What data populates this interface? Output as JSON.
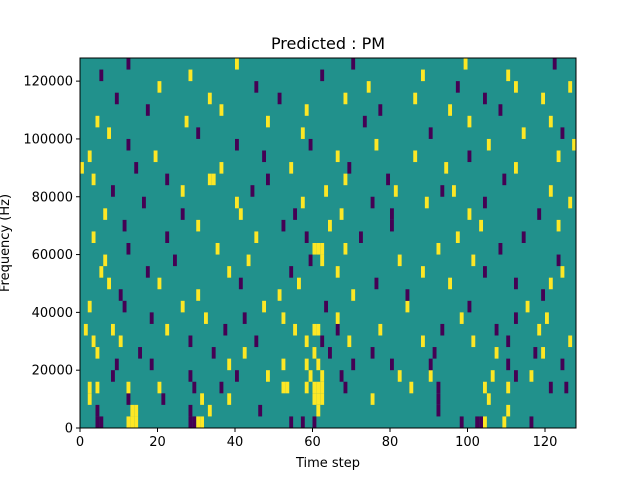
{
  "chart_data": {
    "type": "heatmap",
    "title": "Predicted : PM",
    "xlabel": "Time step",
    "ylabel": "Frequency (Hz)",
    "xlim": [
      0,
      128
    ],
    "ylim": [
      0,
      128000
    ],
    "x_ticks": [
      0,
      20,
      40,
      60,
      80,
      100,
      120
    ],
    "y_ticks": [
      0,
      20000,
      40000,
      60000,
      80000,
      100000,
      120000
    ],
    "y_tick_labels": [
      "0",
      "20000",
      "40000",
      "60000",
      "80000",
      "100000",
      "120000"
    ],
    "grid": false,
    "colormap": "viridis",
    "background_value": 0,
    "colors": {
      "background": "#21918c",
      "low": "#440154",
      "high": "#fde725"
    },
    "cell_height_hz": 4000,
    "cells": [
      {
        "t": 4,
        "f": 0,
        "v": -1
      },
      {
        "t": 5,
        "f": 0,
        "v": -1
      },
      {
        "t": 12,
        "f": 0,
        "v": 1
      },
      {
        "t": 13,
        "f": 0,
        "v": 1
      },
      {
        "t": 14,
        "f": 0,
        "v": 1
      },
      {
        "t": 28,
        "f": 0,
        "v": -1
      },
      {
        "t": 29,
        "f": 0,
        "v": -1
      },
      {
        "t": 30,
        "f": 0,
        "v": 1
      },
      {
        "t": 31,
        "f": 0,
        "v": 1
      },
      {
        "t": 54,
        "f": 0,
        "v": -1
      },
      {
        "t": 57,
        "f": 0,
        "v": -1
      },
      {
        "t": 60,
        "f": 0,
        "v": -1
      },
      {
        "t": 98,
        "f": 0,
        "v": -1
      },
      {
        "t": 102,
        "f": 0,
        "v": -1
      },
      {
        "t": 103,
        "f": 0,
        "v": -1
      },
      {
        "t": 104,
        "f": 0,
        "v": 1
      },
      {
        "t": 109,
        "f": 0,
        "v": 1
      },
      {
        "t": 116,
        "f": 0,
        "v": -1
      },
      {
        "t": 4,
        "f": 4000,
        "v": -1
      },
      {
        "t": 13,
        "f": 4000,
        "v": 1
      },
      {
        "t": 14,
        "f": 4000,
        "v": 1
      },
      {
        "t": 28,
        "f": 4000,
        "v": -1
      },
      {
        "t": 33,
        "f": 4000,
        "v": 1
      },
      {
        "t": 46,
        "f": 4000,
        "v": -1
      },
      {
        "t": 61,
        "f": 4000,
        "v": 1
      },
      {
        "t": 92,
        "f": 4000,
        "v": -1
      },
      {
        "t": 110,
        "f": 4000,
        "v": 1
      },
      {
        "t": 2,
        "f": 8000,
        "v": 1
      },
      {
        "t": 12,
        "f": 8000,
        "v": -1
      },
      {
        "t": 21,
        "f": 8000,
        "v": -1
      },
      {
        "t": 31,
        "f": 8000,
        "v": 1
      },
      {
        "t": 38,
        "f": 8000,
        "v": 1
      },
      {
        "t": 60,
        "f": 8000,
        "v": 1
      },
      {
        "t": 61,
        "f": 8000,
        "v": 1
      },
      {
        "t": 62,
        "f": 8000,
        "v": 1
      },
      {
        "t": 75,
        "f": 8000,
        "v": 1
      },
      {
        "t": 92,
        "f": 8000,
        "v": -1
      },
      {
        "t": 105,
        "f": 8000,
        "v": 1
      },
      {
        "t": 2,
        "f": 12000,
        "v": 1
      },
      {
        "t": 4,
        "f": 12000,
        "v": 1
      },
      {
        "t": 12,
        "f": 12000,
        "v": 1
      },
      {
        "t": 20,
        "f": 12000,
        "v": 1
      },
      {
        "t": 29,
        "f": 12000,
        "v": -1
      },
      {
        "t": 36,
        "f": 12000,
        "v": -1
      },
      {
        "t": 52,
        "f": 12000,
        "v": 1
      },
      {
        "t": 53,
        "f": 12000,
        "v": 1
      },
      {
        "t": 58,
        "f": 12000,
        "v": 1
      },
      {
        "t": 60,
        "f": 12000,
        "v": 1
      },
      {
        "t": 61,
        "f": 12000,
        "v": 1
      },
      {
        "t": 62,
        "f": 12000,
        "v": 1
      },
      {
        "t": 68,
        "f": 12000,
        "v": -1
      },
      {
        "t": 85,
        "f": 12000,
        "v": 1
      },
      {
        "t": 92,
        "f": 12000,
        "v": -1
      },
      {
        "t": 104,
        "f": 12000,
        "v": 1
      },
      {
        "t": 110,
        "f": 12000,
        "v": 1
      },
      {
        "t": 121,
        "f": 12000,
        "v": -1
      },
      {
        "t": 125,
        "f": 12000,
        "v": -1
      },
      {
        "t": 8,
        "f": 16000,
        "v": -1
      },
      {
        "t": 28,
        "f": 16000,
        "v": -1
      },
      {
        "t": 40,
        "f": 16000,
        "v": -1
      },
      {
        "t": 48,
        "f": 16000,
        "v": 1
      },
      {
        "t": 59,
        "f": 16000,
        "v": 1
      },
      {
        "t": 62,
        "f": 16000,
        "v": 1
      },
      {
        "t": 67,
        "f": 16000,
        "v": -1
      },
      {
        "t": 82,
        "f": 16000,
        "v": 1
      },
      {
        "t": 90,
        "f": 16000,
        "v": 1
      },
      {
        "t": 106,
        "f": 16000,
        "v": 1
      },
      {
        "t": 112,
        "f": 16000,
        "v": -1
      },
      {
        "t": 116,
        "f": 16000,
        "v": 1
      },
      {
        "t": 9,
        "f": 20000,
        "v": -1
      },
      {
        "t": 18,
        "f": 20000,
        "v": -1
      },
      {
        "t": 38,
        "f": 20000,
        "v": 1
      },
      {
        "t": 52,
        "f": 20000,
        "v": 1
      },
      {
        "t": 58,
        "f": 20000,
        "v": 1
      },
      {
        "t": 61,
        "f": 20000,
        "v": 1
      },
      {
        "t": 70,
        "f": 20000,
        "v": -1
      },
      {
        "t": 80,
        "f": 20000,
        "v": -1
      },
      {
        "t": 90,
        "f": 20000,
        "v": -1
      },
      {
        "t": 110,
        "f": 20000,
        "v": -1
      },
      {
        "t": 124,
        "f": 20000,
        "v": -1
      },
      {
        "t": 4,
        "f": 24000,
        "v": 1
      },
      {
        "t": 15,
        "f": 24000,
        "v": -1
      },
      {
        "t": 34,
        "f": 24000,
        "v": -1
      },
      {
        "t": 42,
        "f": 24000,
        "v": 1
      },
      {
        "t": 60,
        "f": 24000,
        "v": 1
      },
      {
        "t": 64,
        "f": 24000,
        "v": -1
      },
      {
        "t": 75,
        "f": 24000,
        "v": -1
      },
      {
        "t": 91,
        "f": 24000,
        "v": -1
      },
      {
        "t": 107,
        "f": 24000,
        "v": 1
      },
      {
        "t": 117,
        "f": 24000,
        "v": -1
      },
      {
        "t": 119,
        "f": 24000,
        "v": 1
      },
      {
        "t": 3,
        "f": 28000,
        "v": 1
      },
      {
        "t": 10,
        "f": 28000,
        "v": 1
      },
      {
        "t": 28,
        "f": 28000,
        "v": -1
      },
      {
        "t": 45,
        "f": 28000,
        "v": -1
      },
      {
        "t": 58,
        "f": 28000,
        "v": 1
      },
      {
        "t": 62,
        "f": 28000,
        "v": -1
      },
      {
        "t": 69,
        "f": 28000,
        "v": 1
      },
      {
        "t": 88,
        "f": 28000,
        "v": 1
      },
      {
        "t": 101,
        "f": 28000,
        "v": 1
      },
      {
        "t": 110,
        "f": 28000,
        "v": -1
      },
      {
        "t": 126,
        "f": 28000,
        "v": 1
      },
      {
        "t": 1,
        "f": 32000,
        "v": 1
      },
      {
        "t": 8,
        "f": 32000,
        "v": 1
      },
      {
        "t": 22,
        "f": 32000,
        "v": 1
      },
      {
        "t": 37,
        "f": 32000,
        "v": -1
      },
      {
        "t": 55,
        "f": 32000,
        "v": 1
      },
      {
        "t": 60,
        "f": 32000,
        "v": 1
      },
      {
        "t": 61,
        "f": 32000,
        "v": 1
      },
      {
        "t": 66,
        "f": 32000,
        "v": -1
      },
      {
        "t": 77,
        "f": 32000,
        "v": 1
      },
      {
        "t": 93,
        "f": 32000,
        "v": -1
      },
      {
        "t": 107,
        "f": 32000,
        "v": -1
      },
      {
        "t": 118,
        "f": 32000,
        "v": 1
      },
      {
        "t": 18,
        "f": 36000,
        "v": -1
      },
      {
        "t": 32,
        "f": 36000,
        "v": 1
      },
      {
        "t": 42,
        "f": 36000,
        "v": -1
      },
      {
        "t": 52,
        "f": 36000,
        "v": 1
      },
      {
        "t": 66,
        "f": 36000,
        "v": 1
      },
      {
        "t": 98,
        "f": 36000,
        "v": 1
      },
      {
        "t": 112,
        "f": 36000,
        "v": -1
      },
      {
        "t": 120,
        "f": 36000,
        "v": 1
      },
      {
        "t": 2,
        "f": 40000,
        "v": 1
      },
      {
        "t": 11,
        "f": 40000,
        "v": -1
      },
      {
        "t": 26,
        "f": 40000,
        "v": 1
      },
      {
        "t": 47,
        "f": 40000,
        "v": 1
      },
      {
        "t": 63,
        "f": 40000,
        "v": -1
      },
      {
        "t": 84,
        "f": 40000,
        "v": 1
      },
      {
        "t": 100,
        "f": 40000,
        "v": -1
      },
      {
        "t": 115,
        "f": 40000,
        "v": 1
      },
      {
        "t": 10,
        "f": 44000,
        "v": -1
      },
      {
        "t": 30,
        "f": 44000,
        "v": 1
      },
      {
        "t": 51,
        "f": 44000,
        "v": 1
      },
      {
        "t": 70,
        "f": 44000,
        "v": 1
      },
      {
        "t": 84,
        "f": 44000,
        "v": -1
      },
      {
        "t": 119,
        "f": 44000,
        "v": -1
      },
      {
        "t": 7,
        "f": 48000,
        "v": 1
      },
      {
        "t": 20,
        "f": 48000,
        "v": 1
      },
      {
        "t": 41,
        "f": 48000,
        "v": -1
      },
      {
        "t": 56,
        "f": 48000,
        "v": 1
      },
      {
        "t": 76,
        "f": 48000,
        "v": -1
      },
      {
        "t": 95,
        "f": 48000,
        "v": 1
      },
      {
        "t": 112,
        "f": 48000,
        "v": -1
      },
      {
        "t": 121,
        "f": 48000,
        "v": 1
      },
      {
        "t": 5,
        "f": 52000,
        "v": 1
      },
      {
        "t": 17,
        "f": 52000,
        "v": -1
      },
      {
        "t": 38,
        "f": 52000,
        "v": 1
      },
      {
        "t": 54,
        "f": 52000,
        "v": -1
      },
      {
        "t": 66,
        "f": 52000,
        "v": 1
      },
      {
        "t": 88,
        "f": 52000,
        "v": 1
      },
      {
        "t": 104,
        "f": 52000,
        "v": -1
      },
      {
        "t": 124,
        "f": 52000,
        "v": 1
      },
      {
        "t": 6,
        "f": 56000,
        "v": 1
      },
      {
        "t": 24,
        "f": 56000,
        "v": -1
      },
      {
        "t": 43,
        "f": 56000,
        "v": 1
      },
      {
        "t": 59,
        "f": 56000,
        "v": -1
      },
      {
        "t": 62,
        "f": 56000,
        "v": 1
      },
      {
        "t": 82,
        "f": 56000,
        "v": 1
      },
      {
        "t": 101,
        "f": 56000,
        "v": 1
      },
      {
        "t": 123,
        "f": 56000,
        "v": -1
      },
      {
        "t": 12,
        "f": 60000,
        "v": -1
      },
      {
        "t": 35,
        "f": 60000,
        "v": 1
      },
      {
        "t": 60,
        "f": 60000,
        "v": 1
      },
      {
        "t": 61,
        "f": 60000,
        "v": 1
      },
      {
        "t": 62,
        "f": 60000,
        "v": 1
      },
      {
        "t": 68,
        "f": 60000,
        "v": 1
      },
      {
        "t": 92,
        "f": 60000,
        "v": 1
      },
      {
        "t": 108,
        "f": 60000,
        "v": -1
      },
      {
        "t": 3,
        "f": 64000,
        "v": 1
      },
      {
        "t": 22,
        "f": 64000,
        "v": -1
      },
      {
        "t": 45,
        "f": 64000,
        "v": 1
      },
      {
        "t": 58,
        "f": 64000,
        "v": -1
      },
      {
        "t": 72,
        "f": 64000,
        "v": -1
      },
      {
        "t": 97,
        "f": 64000,
        "v": 1
      },
      {
        "t": 114,
        "f": 64000,
        "v": -1
      },
      {
        "t": 11,
        "f": 68000,
        "v": -1
      },
      {
        "t": 30,
        "f": 68000,
        "v": 1
      },
      {
        "t": 52,
        "f": 68000,
        "v": -1
      },
      {
        "t": 64,
        "f": 68000,
        "v": 1
      },
      {
        "t": 80,
        "f": 68000,
        "v": -1
      },
      {
        "t": 103,
        "f": 68000,
        "v": 1
      },
      {
        "t": 123,
        "f": 68000,
        "v": 1
      },
      {
        "t": 6,
        "f": 72000,
        "v": 1
      },
      {
        "t": 26,
        "f": 72000,
        "v": -1
      },
      {
        "t": 41,
        "f": 72000,
        "v": 1
      },
      {
        "t": 55,
        "f": 72000,
        "v": -1
      },
      {
        "t": 67,
        "f": 72000,
        "v": 1
      },
      {
        "t": 80,
        "f": 72000,
        "v": -1
      },
      {
        "t": 100,
        "f": 72000,
        "v": 1
      },
      {
        "t": 118,
        "f": 72000,
        "v": -1
      },
      {
        "t": 16,
        "f": 76000,
        "v": -1
      },
      {
        "t": 40,
        "f": 76000,
        "v": 1
      },
      {
        "t": 57,
        "f": 76000,
        "v": 1
      },
      {
        "t": 75,
        "f": 76000,
        "v": -1
      },
      {
        "t": 89,
        "f": 76000,
        "v": 1
      },
      {
        "t": 104,
        "f": 76000,
        "v": -1
      },
      {
        "t": 126,
        "f": 76000,
        "v": 1
      },
      {
        "t": 8,
        "f": 80000,
        "v": -1
      },
      {
        "t": 26,
        "f": 80000,
        "v": 1
      },
      {
        "t": 44,
        "f": 80000,
        "v": -1
      },
      {
        "t": 63,
        "f": 80000,
        "v": 1
      },
      {
        "t": 81,
        "f": 80000,
        "v": 1
      },
      {
        "t": 93,
        "f": 80000,
        "v": -1
      },
      {
        "t": 96,
        "f": 80000,
        "v": 1
      },
      {
        "t": 121,
        "f": 80000,
        "v": 1
      },
      {
        "t": 3,
        "f": 84000,
        "v": 1
      },
      {
        "t": 22,
        "f": 84000,
        "v": -1
      },
      {
        "t": 33,
        "f": 84000,
        "v": 1
      },
      {
        "t": 34,
        "f": 84000,
        "v": 1
      },
      {
        "t": 48,
        "f": 84000,
        "v": -1
      },
      {
        "t": 68,
        "f": 84000,
        "v": 1
      },
      {
        "t": 79,
        "f": 84000,
        "v": -1
      },
      {
        "t": 109,
        "f": 84000,
        "v": -1
      },
      {
        "t": 0,
        "f": 88000,
        "v": 1
      },
      {
        "t": 14,
        "f": 88000,
        "v": -1
      },
      {
        "t": 36,
        "f": 88000,
        "v": 1
      },
      {
        "t": 54,
        "f": 88000,
        "v": 1
      },
      {
        "t": 69,
        "f": 88000,
        "v": -1
      },
      {
        "t": 94,
        "f": 88000,
        "v": 1
      },
      {
        "t": 112,
        "f": 88000,
        "v": 1
      },
      {
        "t": 2,
        "f": 92000,
        "v": 1
      },
      {
        "t": 19,
        "f": 92000,
        "v": 1
      },
      {
        "t": 47,
        "f": 92000,
        "v": -1
      },
      {
        "t": 66,
        "f": 92000,
        "v": 1
      },
      {
        "t": 86,
        "f": 92000,
        "v": 1
      },
      {
        "t": 100,
        "f": 92000,
        "v": -1
      },
      {
        "t": 123,
        "f": 92000,
        "v": 1
      },
      {
        "t": 12,
        "f": 96000,
        "v": -1
      },
      {
        "t": 40,
        "f": 96000,
        "v": -1
      },
      {
        "t": 59,
        "f": 96000,
        "v": -1
      },
      {
        "t": 76,
        "f": 96000,
        "v": 1
      },
      {
        "t": 105,
        "f": 96000,
        "v": 1
      },
      {
        "t": 127,
        "f": 96000,
        "v": 1
      },
      {
        "t": 7,
        "f": 100000,
        "v": 1
      },
      {
        "t": 30,
        "f": 100000,
        "v": -1
      },
      {
        "t": 57,
        "f": 100000,
        "v": 1
      },
      {
        "t": 90,
        "f": 100000,
        "v": -1
      },
      {
        "t": 114,
        "f": 100000,
        "v": 1
      },
      {
        "t": 124,
        "f": 100000,
        "v": -1
      },
      {
        "t": 4,
        "f": 104000,
        "v": 1
      },
      {
        "t": 27,
        "f": 104000,
        "v": 1
      },
      {
        "t": 48,
        "f": 104000,
        "v": 1
      },
      {
        "t": 73,
        "f": 104000,
        "v": -1
      },
      {
        "t": 100,
        "f": 104000,
        "v": 1
      },
      {
        "t": 121,
        "f": 104000,
        "v": 1
      },
      {
        "t": 17,
        "f": 108000,
        "v": -1
      },
      {
        "t": 36,
        "f": 108000,
        "v": 1
      },
      {
        "t": 58,
        "f": 108000,
        "v": 1
      },
      {
        "t": 77,
        "f": 108000,
        "v": -1
      },
      {
        "t": 95,
        "f": 108000,
        "v": 1
      },
      {
        "t": 108,
        "f": 108000,
        "v": -1
      },
      {
        "t": 9,
        "f": 112000,
        "v": -1
      },
      {
        "t": 33,
        "f": 112000,
        "v": 1
      },
      {
        "t": 51,
        "f": 112000,
        "v": -1
      },
      {
        "t": 68,
        "f": 112000,
        "v": 1
      },
      {
        "t": 86,
        "f": 112000,
        "v": 1
      },
      {
        "t": 104,
        "f": 112000,
        "v": -1
      },
      {
        "t": 119,
        "f": 112000,
        "v": 1
      },
      {
        "t": 20,
        "f": 116000,
        "v": 1
      },
      {
        "t": 45,
        "f": 116000,
        "v": -1
      },
      {
        "t": 74,
        "f": 116000,
        "v": 1
      },
      {
        "t": 97,
        "f": 116000,
        "v": -1
      },
      {
        "t": 112,
        "f": 116000,
        "v": 1
      },
      {
        "t": 126,
        "f": 116000,
        "v": 1
      },
      {
        "t": 5,
        "f": 120000,
        "v": -1
      },
      {
        "t": 28,
        "f": 120000,
        "v": 1
      },
      {
        "t": 62,
        "f": 120000,
        "v": -1
      },
      {
        "t": 88,
        "f": 120000,
        "v": 1
      },
      {
        "t": 110,
        "f": 120000,
        "v": 1
      },
      {
        "t": 12,
        "f": 124000,
        "v": -1
      },
      {
        "t": 40,
        "f": 124000,
        "v": 1
      },
      {
        "t": 70,
        "f": 124000,
        "v": -1
      },
      {
        "t": 99,
        "f": 124000,
        "v": 1
      },
      {
        "t": 122,
        "f": 124000,
        "v": -1
      }
    ]
  }
}
